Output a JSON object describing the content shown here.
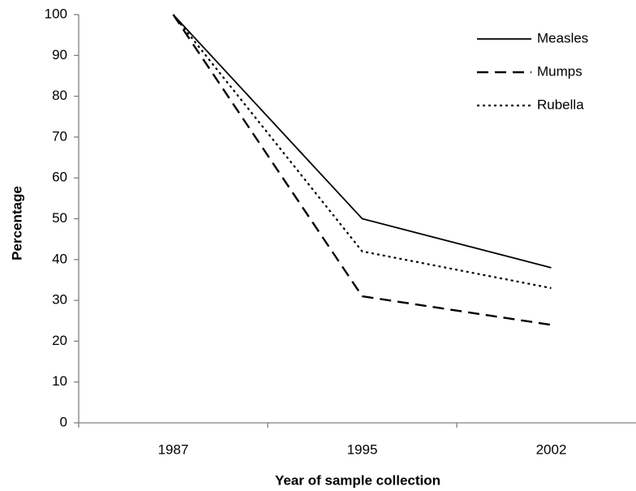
{
  "chart_data": {
    "type": "line",
    "xlabel": "Year of sample collection",
    "ylabel": "Percentage",
    "categories": [
      "1987",
      "1995",
      "2002"
    ],
    "series": [
      {
        "name": "Measles",
        "color": "#000000",
        "dash": "solid",
        "values": [
          100,
          50,
          38
        ]
      },
      {
        "name": "Mumps",
        "color": "#000000",
        "dash": "dashed",
        "values": [
          100,
          31,
          24
        ]
      },
      {
        "name": "Rubella",
        "color": "#000000",
        "dash": "dotted",
        "values": [
          100,
          42,
          33
        ]
      }
    ],
    "ylim": [
      0,
      100
    ],
    "yticks": [
      0,
      10,
      20,
      30,
      40,
      50,
      60,
      70,
      80,
      90,
      100
    ],
    "grid": false,
    "legend": "upper right"
  }
}
